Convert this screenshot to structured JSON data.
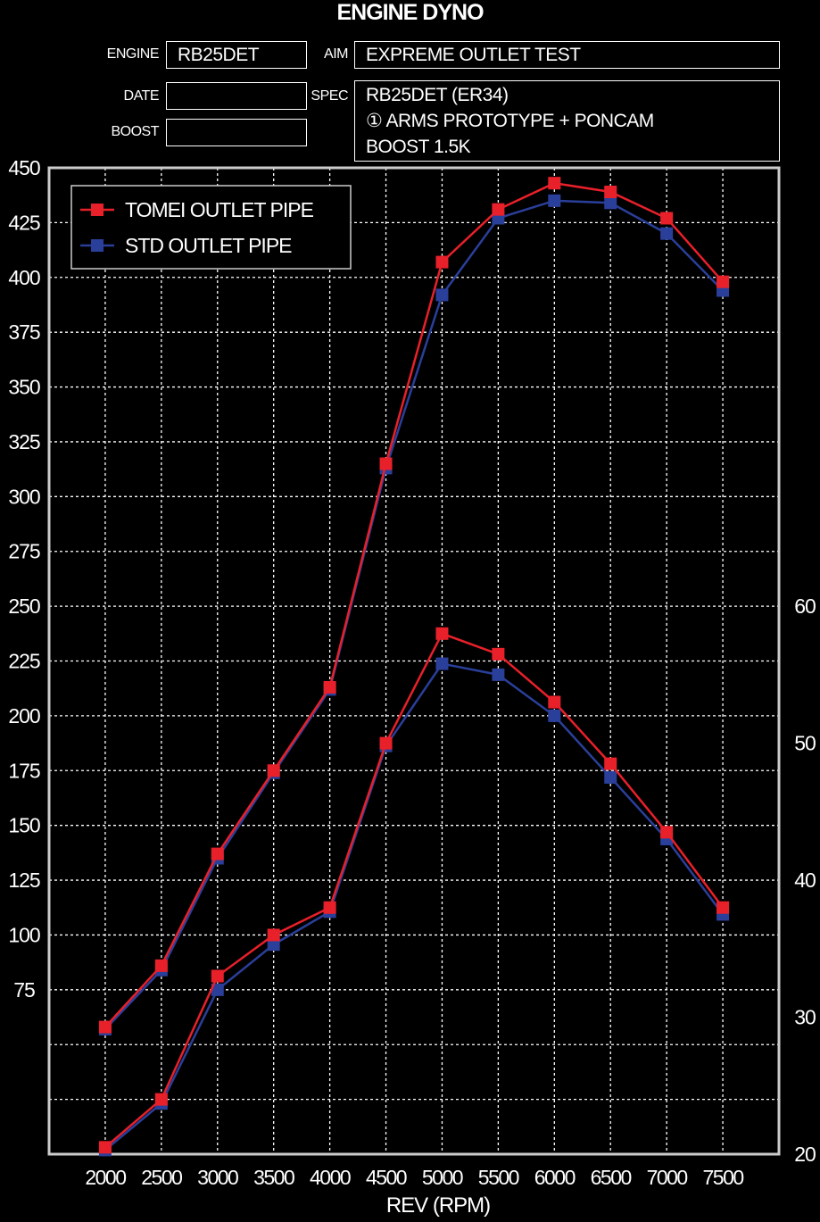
{
  "header": {
    "title": "ENGINE DYNO",
    "engine_label": "ENGINE",
    "engine_value": "RB25DET",
    "aim_label": "AIM",
    "aim_value": "EXPREME OUTLET TEST",
    "date_label": "DATE",
    "date_value": "",
    "boost_label": "BOOST",
    "boost_value": "",
    "spec_label": "SPEC",
    "spec_lines": [
      "RB25DET (ER34)",
      "① ARMS PROTOTYPE + PONCAM",
      "BOOST 1.5K"
    ]
  },
  "chart_data": {
    "type": "line",
    "title": "ENGINE DYNO",
    "xlabel": "REV (RPM)",
    "x": [
      2000,
      2500,
      3000,
      3500,
      4000,
      4500,
      5000,
      5500,
      6000,
      6500,
      7000,
      7500
    ],
    "xlim": [
      1500,
      8000
    ],
    "ylim_left": [
      0,
      450
    ],
    "ylim_right": [
      20,
      60
    ],
    "left_ticks": [
      450,
      425,
      400,
      375,
      350,
      325,
      300,
      275,
      250,
      225,
      200,
      175,
      150,
      125,
      100,
      75
    ],
    "right_ticks": [
      60,
      50,
      40,
      30,
      20
    ],
    "x_ticks": [
      2000,
      2500,
      3000,
      3500,
      4000,
      4500,
      5000,
      5500,
      6000,
      6500,
      7000,
      7500
    ],
    "grid": true,
    "legend_position": "top-left",
    "colors": {
      "tomei": "#e8202a",
      "std": "#2a3f9a",
      "grid": "#ffffff",
      "frame": "#cccccc"
    },
    "series": [
      {
        "name": "TOMEI OUTLET PIPE",
        "color": "#e8202a",
        "axis": "left",
        "kind": "power",
        "values": [
          58,
          86,
          137,
          175,
          213,
          315,
          407,
          431,
          443,
          439,
          427,
          398
        ]
      },
      {
        "name": "STD OUTLET PIPE",
        "color": "#2a3f9a",
        "axis": "left",
        "kind": "power",
        "values": [
          57,
          84,
          135,
          174,
          212,
          313,
          392,
          427,
          435,
          434,
          420,
          394
        ]
      },
      {
        "name": "TOMEI OUTLET PIPE",
        "color": "#e8202a",
        "axis": "right",
        "kind": "torque",
        "values": [
          20.5,
          24,
          33,
          36,
          38,
          50,
          58,
          56.5,
          53,
          48.5,
          43.5,
          38
        ]
      },
      {
        "name": "STD OUTLET PIPE",
        "color": "#2a3f9a",
        "axis": "right",
        "kind": "torque",
        "values": [
          20.3,
          23.7,
          32,
          35.3,
          37.7,
          49.8,
          55.8,
          55,
          52,
          47.5,
          43,
          37.5
        ]
      }
    ]
  }
}
